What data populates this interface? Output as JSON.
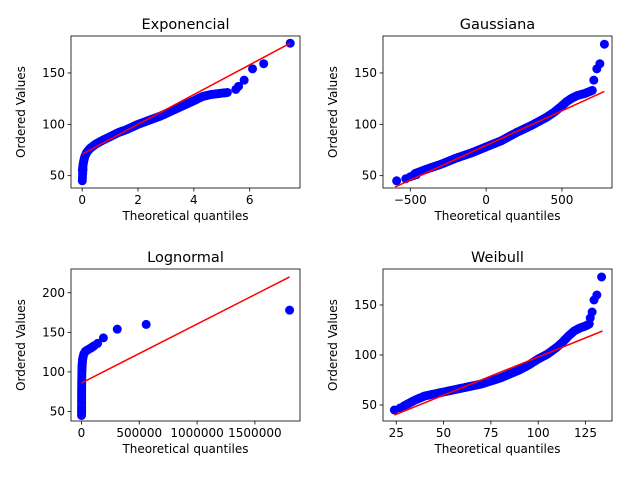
{
  "colors": {
    "points": "#0000ff",
    "line": "#ff0000",
    "axes": "#000000",
    "background": "#ffffff"
  },
  "chart_data": [
    {
      "type": "scatter",
      "title": "Exponencial",
      "xlabel": "Theoretical quantiles",
      "ylabel": "Ordered Values",
      "xlim": [
        -0.4,
        7.8
      ],
      "ylim": [
        38,
        186
      ],
      "xticks": [
        0,
        2,
        4,
        6
      ],
      "xticklabels": [
        "0",
        "2",
        "4",
        "6"
      ],
      "yticks": [
        50,
        100,
        150
      ],
      "yticklabels": [
        "50",
        "100",
        "150"
      ],
      "fit_line": {
        "x": [
          0,
          7.45
        ],
        "y": [
          71,
          179
        ]
      },
      "series": [
        {
          "curve": {
            "x": [
              0.01,
              0.02,
              0.04,
              0.07,
              0.1,
              0.15,
              0.2,
              0.3,
              0.4,
              0.5,
              0.7,
              1.0,
              1.3,
              1.6,
              2.0,
              2.4,
              2.8,
              3.2,
              3.6,
              4.0,
              4.3,
              4.6,
              4.9,
              5.2
            ],
            "y": [
              55,
              58,
              62,
              66,
              69,
              72,
              74,
              77,
              79,
              81,
              84,
              88,
              92,
              95,
              100,
              104,
              108,
              113,
              118,
              123,
              127,
              129,
              130,
              131
            ]
          },
          "points": {
            "x": [
              0.005,
              0.01,
              0.015,
              0.02,
              0.03,
              5.5,
              5.6,
              5.8,
              6.1,
              6.5,
              7.45
            ],
            "y": [
              45,
              48,
              51,
              53,
              56,
              134,
              137,
              143,
              154,
              159,
              179
            ]
          }
        }
      ]
    },
    {
      "type": "scatter",
      "title": "Gaussiana",
      "xlabel": "Theoretical quantiles",
      "ylabel": "Ordered Values",
      "xlim": [
        -680,
        830
      ],
      "ylim": [
        38,
        186
      ],
      "xticks": [
        -500,
        0,
        500
      ],
      "xticklabels": [
        "−500",
        "0",
        "500"
      ],
      "yticks": [
        50,
        100,
        150
      ],
      "yticklabels": [
        "50",
        "100",
        "150"
      ],
      "fit_line": {
        "x": [
          -600,
          780
        ],
        "y": [
          39,
          132
        ]
      },
      "series": [
        {
          "curve": {
            "x": [
              -470,
              -400,
              -300,
              -200,
              -100,
              0,
              100,
              200,
              300,
              400,
              450,
              500,
              530,
              560,
              600,
              650,
              700
            ],
            "y": [
              52,
              56,
              61,
              67,
              72,
              78,
              84,
              92,
              99,
              107,
              112,
              118,
              122,
              125,
              128,
              130,
              133
            ]
          },
          "points": {
            "x": [
              -590,
              -530,
              -500,
              -480,
              -460,
              710,
              730,
              750,
              780
            ],
            "y": [
              45,
              47,
              49,
              50,
              51,
              143,
              154,
              159,
              178
            ]
          }
        }
      ]
    },
    {
      "type": "scatter",
      "title": "Lognormal",
      "xlabel": "Theoretical quantiles",
      "ylabel": "Ordered Values",
      "xlim": [
        -90000,
        1890000
      ],
      "ylim": [
        38,
        230
      ],
      "xticks": [
        0,
        500000,
        1000000,
        1500000
      ],
      "xticklabels": [
        "0",
        "500000",
        "1000000",
        "1500000"
      ],
      "yticks": [
        50,
        100,
        150,
        200
      ],
      "yticklabels": [
        "50",
        "100",
        "150",
        "200"
      ],
      "fit_line": {
        "x": [
          0,
          1800000
        ],
        "y": [
          86,
          220
        ]
      },
      "series": [
        {
          "curve": {
            "x": [
              2000,
              2000,
              2000,
              3000,
              4000,
              6000,
              9000,
              14000,
              22000,
              35000,
              55000,
              80000,
              110000
            ],
            "y": [
              48,
              60,
              75,
              90,
              100,
              108,
              114,
              119,
              123,
              126,
              128,
              130,
              133
            ]
          },
          "points": {
            "x": [
              1000,
              1500,
              2000,
              140000,
              190000,
              310000,
              560000,
              1800000
            ],
            "y": [
              45,
              50,
              55,
              136,
              143,
              154,
              160,
              178
            ]
          }
        }
      ]
    },
    {
      "type": "scatter",
      "title": "Weibull",
      "xlabel": "Theoretical quantiles",
      "ylabel": "Ordered Values",
      "xlim": [
        18,
        139
      ],
      "ylim": [
        34,
        186
      ],
      "xticks": [
        25,
        50,
        75,
        100,
        125
      ],
      "xticklabels": [
        "25",
        "50",
        "75",
        "100",
        "125"
      ],
      "yticks": [
        50,
        100,
        150
      ],
      "yticklabels": [
        "50",
        "100",
        "150"
      ],
      "fit_line": {
        "x": [
          24,
          134
        ],
        "y": [
          40,
          124
        ]
      },
      "series": [
        {
          "curve": {
            "x": [
              30,
              35,
              40,
              45,
              50,
              55,
              60,
              65,
              70,
              75,
              80,
              85,
              90,
              95,
              100,
              105,
              110,
              113,
              116,
              119,
              122,
              125,
              127
            ],
            "y": [
              50,
              55,
              59,
              61,
              63,
              65,
              67,
              69,
              71,
              74,
              77,
              81,
              85,
              90,
              96,
              101,
              108,
              113,
              119,
              124,
              127,
              129,
              131
            ]
          },
          "points": {
            "x": [
              24,
              27,
              29,
              127.5,
              128.5,
              129.5,
              131,
              133.5
            ],
            "y": [
              45,
              47,
              49,
              137,
              143,
              155,
              160,
              178
            ]
          }
        }
      ]
    }
  ]
}
